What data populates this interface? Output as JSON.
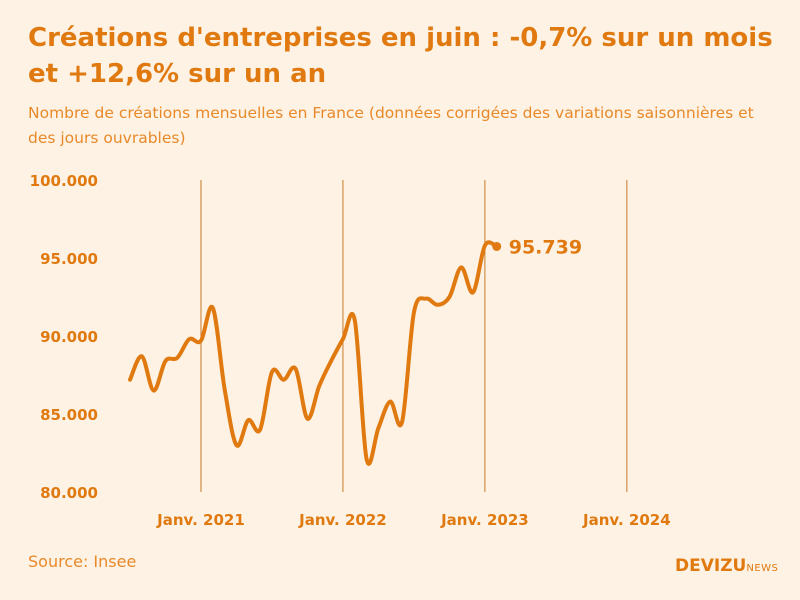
{
  "header": {
    "title": "Créations d'entreprises en juin : -0,7% sur un mois et +12,6% sur un an",
    "subtitle": "Nombre de créations mensuelles en France (données corrigées des variations saisonnières et des jours ouvrables)"
  },
  "footer": {
    "source": "Source: Insee",
    "brand": "DEVIZU",
    "brand_sub": "NEWS"
  },
  "colors": {
    "line": "#e07a10",
    "text": "#e07a10",
    "background": "#fdf2e3"
  },
  "chart_data": {
    "type": "line",
    "title": "Créations d'entreprises en juin : -0,7% sur un mois et +12,6% sur un an",
    "xlabel": "",
    "ylabel": "",
    "ylim": [
      80000,
      100000
    ],
    "yticks": [
      80000,
      85000,
      90000,
      95000,
      100000
    ],
    "ytick_labels": [
      "80.000",
      "85.000",
      "90.000",
      "95.000",
      "100.000"
    ],
    "xtick_labels": [
      "Janv. 2021",
      "Janv. 2022",
      "Janv. 2023",
      "Janv. 2024"
    ],
    "xtick_index": [
      6,
      18,
      30,
      42
    ],
    "gridlines": "vertical at January of each year",
    "last_label": "95.739",
    "series": [
      {
        "name": "Créations mensuelles",
        "start": "2020-07",
        "values": [
          87200,
          88700,
          86500,
          88400,
          88600,
          89800,
          89700,
          91800,
          86600,
          83000,
          84600,
          84000,
          87700,
          87200,
          87900,
          84700,
          86800,
          88400,
          89800,
          91000,
          82100,
          84100,
          85800,
          84500,
          91500,
          92400,
          92000,
          92500,
          94400,
          92800,
          95800,
          95739
        ]
      }
    ]
  }
}
